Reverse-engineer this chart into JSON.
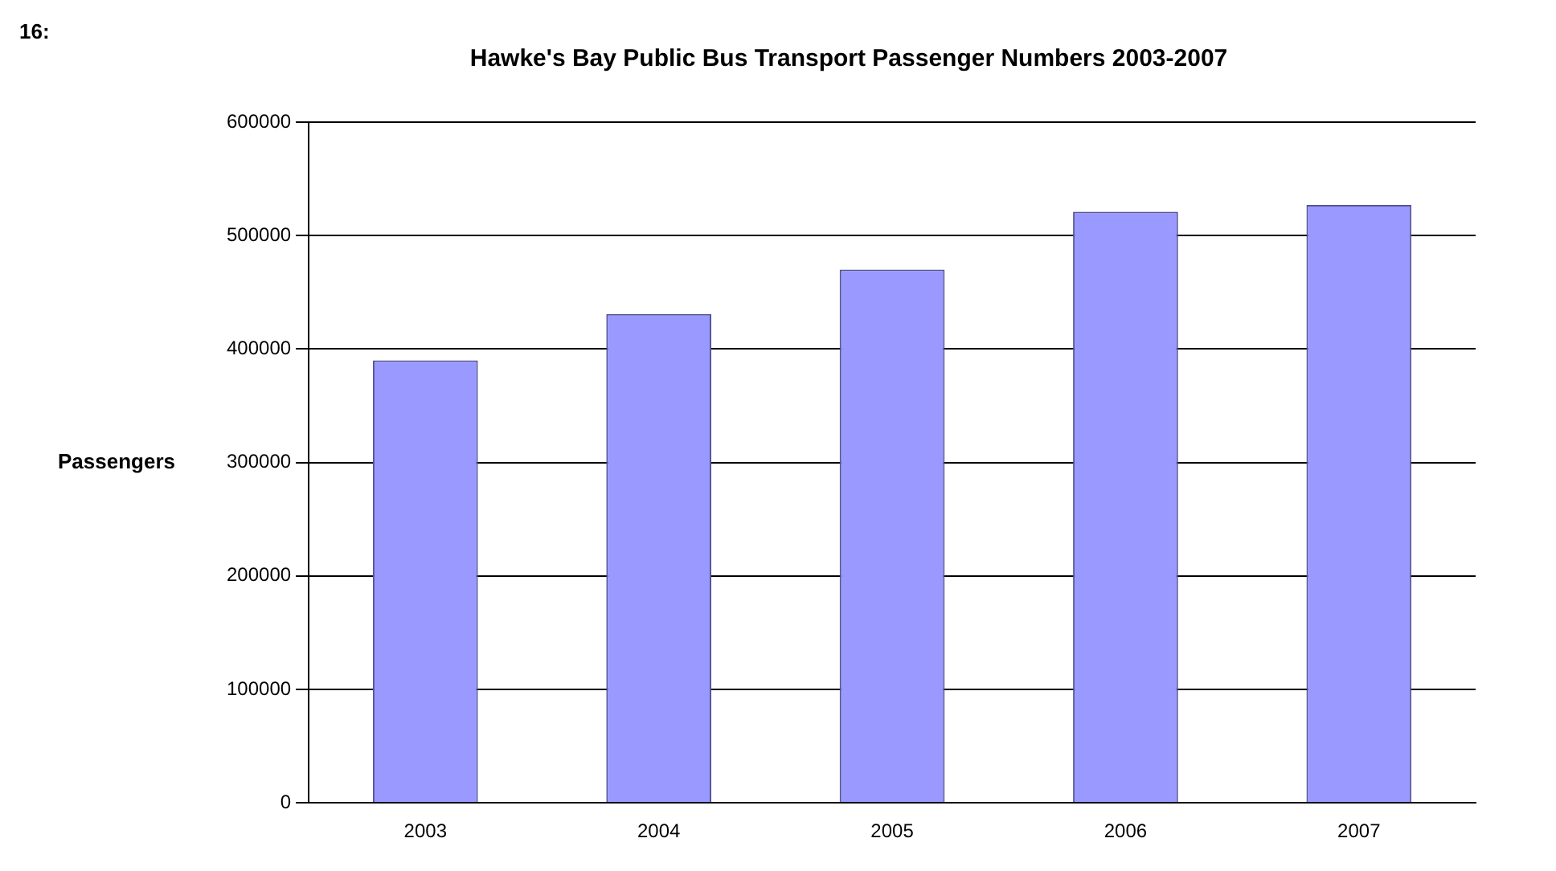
{
  "chart_data": {
    "type": "bar",
    "title": "Hawke's Bay Public Bus Transport Passenger Numbers 2003-2007",
    "ylabel": "Passengers",
    "annotations": [
      "16:"
    ],
    "categories": [
      "2003",
      "2004",
      "2005",
      "2006",
      "2007"
    ],
    "values": [
      390000,
      431000,
      470000,
      521000,
      527000
    ],
    "color": "#9999ff",
    "ylim": [
      0,
      600000
    ],
    "yticks": [
      0,
      100000,
      200000,
      300000,
      400000,
      500000,
      600000
    ],
    "grid": "y",
    "legend": false
  }
}
